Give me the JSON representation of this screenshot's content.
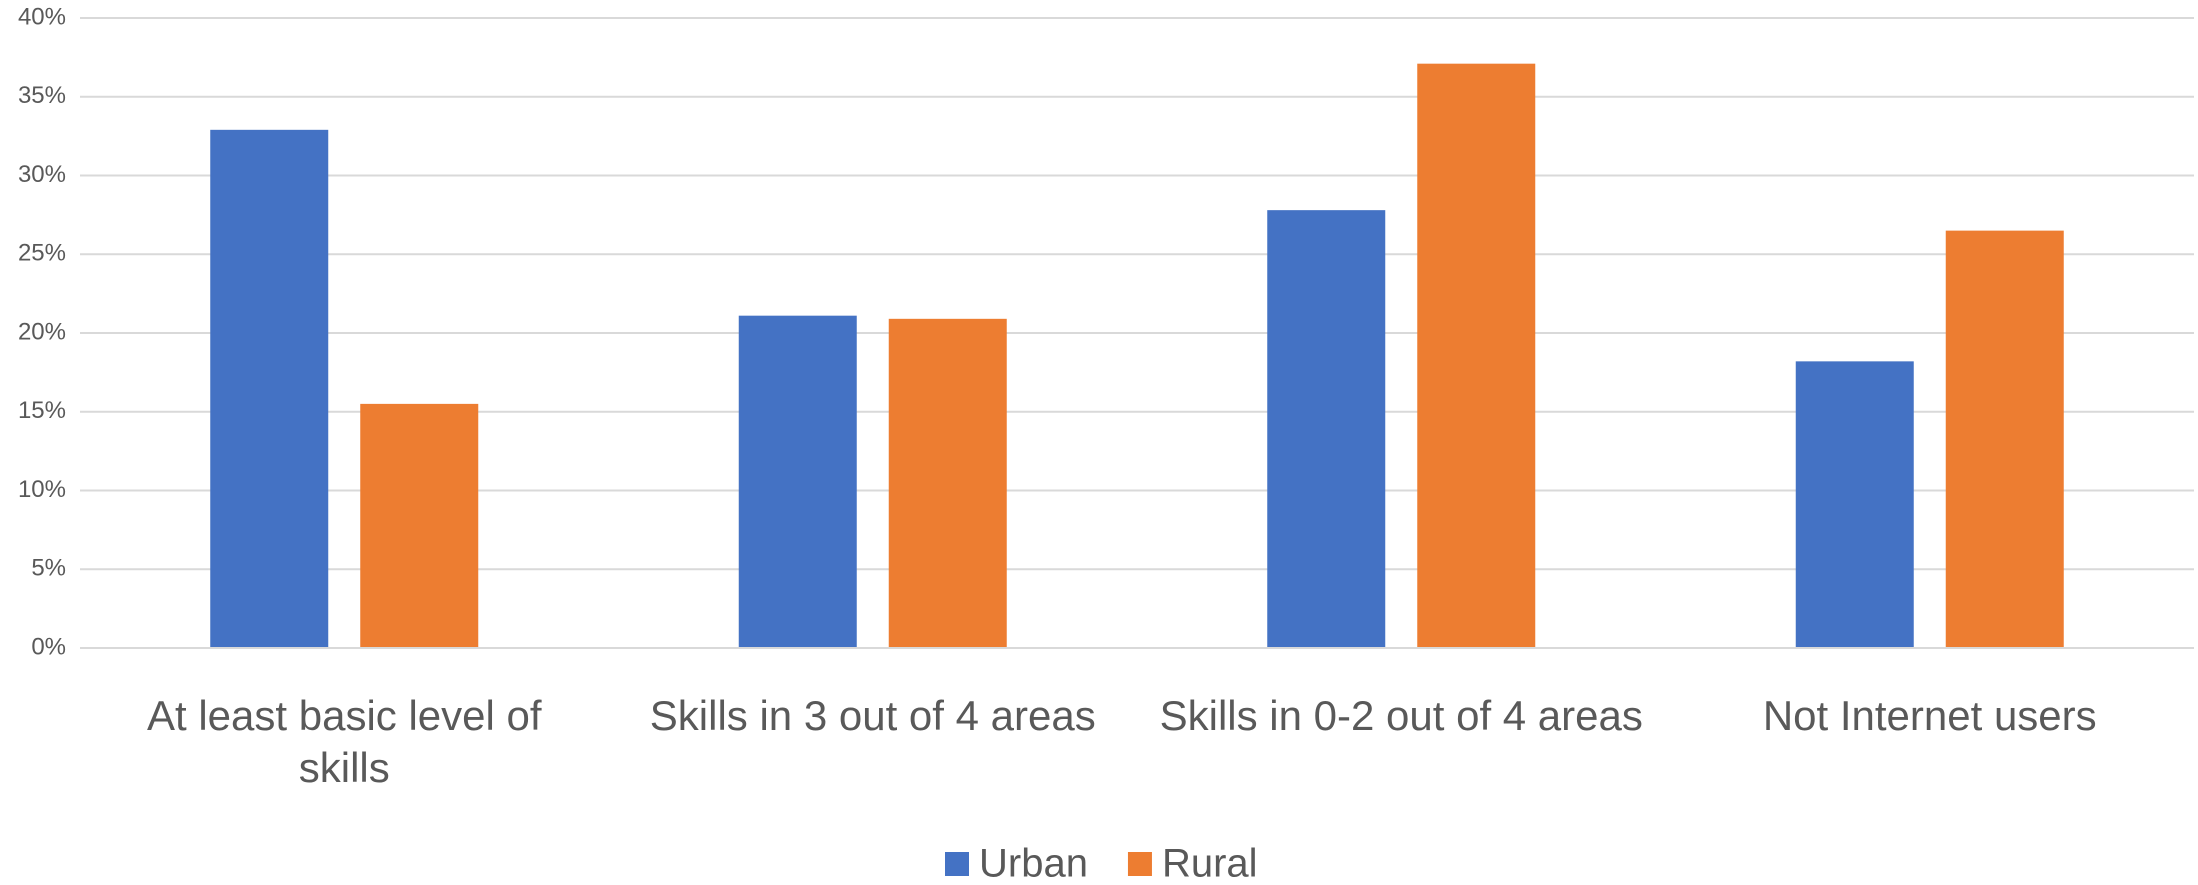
{
  "chart_data": {
    "type": "bar",
    "categories": [
      "At least basic level of skills",
      "Skills in 3 out of 4 areas",
      "Skills in 0-2 out of 4 areas",
      "Not Internet users"
    ],
    "series": [
      {
        "name": "Urban",
        "color": "#4472c4",
        "values": [
          32.9,
          21.1,
          27.8,
          18.2
        ]
      },
      {
        "name": "Rural",
        "color": "#ed7d31",
        "values": [
          15.5,
          20.9,
          37.1,
          26.5
        ]
      }
    ],
    "ylim": [
      0,
      40
    ],
    "yticks": [
      {
        "value": 0,
        "label": "0%"
      },
      {
        "value": 5,
        "label": "5%"
      },
      {
        "value": 10,
        "label": "10%"
      },
      {
        "value": 15,
        "label": "15%"
      },
      {
        "value": 20,
        "label": "20%"
      },
      {
        "value": 25,
        "label": "25%"
      },
      {
        "value": 30,
        "label": "30%"
      },
      {
        "value": 35,
        "label": "35%"
      },
      {
        "value": 40,
        "label": "40%"
      }
    ],
    "grid": true,
    "legend": "bottom"
  }
}
